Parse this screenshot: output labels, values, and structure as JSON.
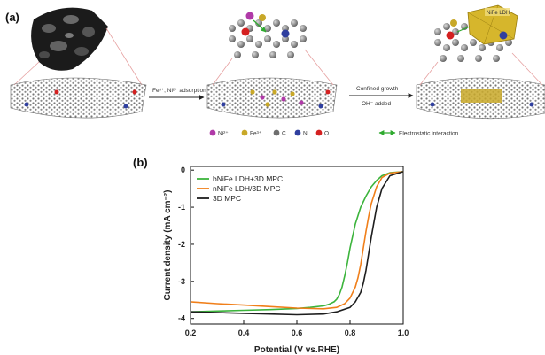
{
  "panel_a": {
    "label": "(a)",
    "step1_text": "Fe³⁺, Ni²⁺ adsorption",
    "step2_text": "Confined growth",
    "step2_sub": "OH⁻ added",
    "ldh_label": "NiFe LDH",
    "legend": [
      {
        "label": "Ni²⁺",
        "color": "#b03aa8"
      },
      {
        "label": "Fe³⁺",
        "color": "#c8a828"
      },
      {
        "label": "C",
        "color": "#6e6e6e"
      },
      {
        "label": "N",
        "color": "#2f3f9f"
      },
      {
        "label": "O",
        "color": "#d42020"
      }
    ],
    "legend_arrow_label": "Electrostatic interaction"
  },
  "panel_b": {
    "label": "(b)",
    "chart_data": {
      "type": "line",
      "xlabel": "Potential (V vs.RHE)",
      "ylabel": "Current density (mA cm⁻²)",
      "xlim": [
        0.2,
        1.0
      ],
      "ylim": [
        -4.15,
        0.1
      ],
      "xticks": [
        0.2,
        0.4,
        0.6,
        0.8,
        1.0
      ],
      "yticks": [
        0,
        -1,
        -2,
        -3,
        -4
      ],
      "series": [
        {
          "name": "bNiFe LDH+3D MPC",
          "color": "#3cb43c",
          "x": [
            0.2,
            0.3,
            0.4,
            0.5,
            0.6,
            0.65,
            0.7,
            0.72,
            0.74,
            0.75,
            0.76,
            0.77,
            0.78,
            0.79,
            0.8,
            0.82,
            0.84,
            0.86,
            0.88,
            0.9,
            0.92,
            0.95,
            1.0
          ],
          "y": [
            -3.82,
            -3.8,
            -3.78,
            -3.76,
            -3.73,
            -3.7,
            -3.66,
            -3.62,
            -3.55,
            -3.48,
            -3.35,
            -3.15,
            -2.85,
            -2.5,
            -2.1,
            -1.45,
            -1.0,
            -0.7,
            -0.45,
            -0.28,
            -0.15,
            -0.07,
            -0.04
          ]
        },
        {
          "name": "nNiFe LDH/3D MPC",
          "color": "#f07f1a",
          "x": [
            0.2,
            0.3,
            0.4,
            0.5,
            0.6,
            0.7,
            0.75,
            0.78,
            0.8,
            0.82,
            0.83,
            0.84,
            0.85,
            0.86,
            0.87,
            0.88,
            0.9,
            0.92,
            0.95,
            1.0
          ],
          "y": [
            -3.55,
            -3.6,
            -3.64,
            -3.68,
            -3.72,
            -3.74,
            -3.7,
            -3.6,
            -3.45,
            -3.15,
            -2.9,
            -2.55,
            -2.1,
            -1.65,
            -1.25,
            -0.9,
            -0.45,
            -0.2,
            -0.08,
            -0.04
          ]
        },
        {
          "name": "3D MPC",
          "color": "#1e1e1e",
          "x": [
            0.2,
            0.3,
            0.4,
            0.5,
            0.6,
            0.7,
            0.75,
            0.8,
            0.82,
            0.84,
            0.85,
            0.86,
            0.87,
            0.88,
            0.89,
            0.9,
            0.92,
            0.95,
            1.0
          ],
          "y": [
            -3.82,
            -3.84,
            -3.86,
            -3.88,
            -3.9,
            -3.88,
            -3.82,
            -3.7,
            -3.55,
            -3.3,
            -3.05,
            -2.7,
            -2.25,
            -1.8,
            -1.4,
            -1.0,
            -0.5,
            -0.15,
            -0.04
          ]
        }
      ]
    }
  }
}
